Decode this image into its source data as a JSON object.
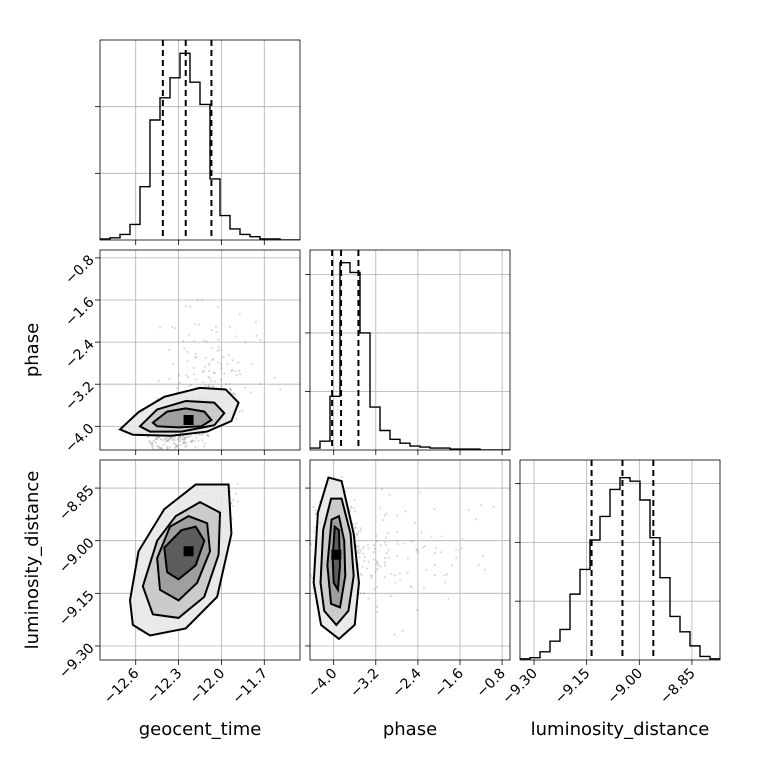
{
  "chart_data": {
    "type": "corner",
    "parameters": [
      "geocent_time",
      "phase",
      "luminosity_distance"
    ],
    "grid": true,
    "panels": [
      {
        "id": "hist-geocent_time",
        "type": "histogram",
        "parameter": "geocent_time",
        "xlim": [
          -12.85,
          -11.45
        ],
        "bins": [
          -12.85,
          -12.78,
          -12.71,
          -12.64,
          -12.57,
          -12.5,
          -12.43,
          -12.36,
          -12.29,
          -12.22,
          -12.15,
          -12.08,
          -12.01,
          -11.94,
          -11.87,
          -11.8,
          -11.73,
          -11.66,
          -11.59,
          -11.52,
          -11.45
        ],
        "counts": [
          1,
          2,
          5,
          14,
          48,
          108,
          128,
          146,
          168,
          142,
          122,
          55,
          22,
          10,
          5,
          3,
          1,
          1,
          0,
          0
        ],
        "ymax": 180,
        "quantiles": [
          -12.41,
          -12.25,
          -12.07
        ]
      },
      {
        "id": "scatter-geocent_time-phase",
        "type": "scatter",
        "x": "geocent_time",
        "y": "phase",
        "xlim": [
          -12.85,
          -11.45
        ],
        "ylim": [
          -4.45,
          -0.65
        ],
        "mean": [
          -12.23,
          -3.88
        ],
        "std": [
          0.12,
          0.3
        ],
        "corr": 0.62,
        "skew_up": true,
        "contours": [
          [
            [
              -12.48,
              -3.93
            ],
            [
              -12.38,
              -3.72
            ],
            [
              -12.25,
              -3.66
            ],
            [
              -12.12,
              -3.72
            ],
            [
              -12.07,
              -3.88
            ],
            [
              -12.14,
              -4.0
            ],
            [
              -12.3,
              -4.02
            ],
            [
              -12.45,
              -4.0
            ]
          ],
          [
            [
              -12.57,
              -4.0
            ],
            [
              -12.45,
              -3.68
            ],
            [
              -12.25,
              -3.52
            ],
            [
              -12.05,
              -3.55
            ],
            [
              -11.98,
              -3.75
            ],
            [
              -12.05,
              -3.98
            ],
            [
              -12.28,
              -4.1
            ],
            [
              -12.5,
              -4.1
            ]
          ],
          [
            [
              -12.71,
              -4.06
            ],
            [
              -12.58,
              -3.73
            ],
            [
              -12.4,
              -3.44
            ],
            [
              -12.15,
              -3.27
            ],
            [
              -11.97,
              -3.3
            ],
            [
              -11.88,
              -3.55
            ],
            [
              -11.93,
              -3.9
            ],
            [
              -12.1,
              -4.1
            ],
            [
              -12.35,
              -4.18
            ],
            [
              -12.62,
              -4.16
            ]
          ]
        ]
      },
      {
        "id": "hist-phase",
        "type": "histogram",
        "parameter": "phase",
        "xlim": [
          -4.45,
          -0.65
        ],
        "bins": [
          -4.45,
          -4.26,
          -4.07,
          -3.88,
          -3.69,
          -3.5,
          -3.31,
          -3.12,
          -2.93,
          -2.74,
          -2.55,
          -2.36,
          -2.17,
          -1.98,
          -1.79,
          -1.6,
          -1.41,
          -1.22,
          -1.03,
          -0.84,
          -0.65
        ],
        "counts": [
          2,
          9,
          55,
          192,
          182,
          120,
          44,
          20,
          11,
          7,
          4,
          3,
          2,
          2,
          1,
          1,
          1,
          0,
          0,
          0
        ],
        "ymax": 205,
        "quantiles": [
          -4.03,
          -3.86,
          -3.53
        ]
      },
      {
        "id": "scatter-geocent_time-luminosity_distance",
        "type": "scatter",
        "x": "geocent_time",
        "y": "luminosity_distance",
        "xlim": [
          -12.85,
          -11.45
        ],
        "ylim": [
          -9.34,
          -8.77
        ],
        "mean": [
          -12.23,
          -9.03
        ],
        "std": [
          0.12,
          0.065
        ],
        "corr": 0.78,
        "contours": [
          [
            [
              -12.4,
              -9.02
            ],
            [
              -12.28,
              -8.97
            ],
            [
              -12.18,
              -8.96
            ],
            [
              -12.12,
              -9.0
            ],
            [
              -12.18,
              -9.07
            ],
            [
              -12.3,
              -9.11
            ],
            [
              -12.38,
              -9.09
            ]
          ],
          [
            [
              -12.45,
              -9.05
            ],
            [
              -12.36,
              -8.96
            ],
            [
              -12.23,
              -8.93
            ],
            [
              -12.1,
              -8.95
            ],
            [
              -12.08,
              -9.03
            ],
            [
              -12.17,
              -9.12
            ],
            [
              -12.3,
              -9.17
            ],
            [
              -12.43,
              -9.14
            ]
          ],
          [
            [
              -12.55,
              -9.13
            ],
            [
              -12.45,
              -9.0
            ],
            [
              -12.32,
              -8.93
            ],
            [
              -12.15,
              -8.89
            ],
            [
              -12.01,
              -8.92
            ],
            [
              -12.02,
              -9.04
            ],
            [
              -12.12,
              -9.16
            ],
            [
              -12.3,
              -9.22
            ],
            [
              -12.48,
              -9.21
            ]
          ],
          [
            [
              -12.64,
              -9.17
            ],
            [
              -12.58,
              -9.03
            ],
            [
              -12.4,
              -8.91
            ],
            [
              -12.18,
              -8.84
            ],
            [
              -11.95,
              -8.84
            ],
            [
              -11.93,
              -8.98
            ],
            [
              -12.03,
              -9.16
            ],
            [
              -12.25,
              -9.25
            ],
            [
              -12.5,
              -9.27
            ],
            [
              -12.62,
              -9.24
            ]
          ]
        ]
      },
      {
        "id": "scatter-phase-luminosity_distance",
        "type": "scatter",
        "x": "phase",
        "y": "luminosity_distance",
        "xlim": [
          -4.45,
          -0.65
        ],
        "ylim": [
          -9.34,
          -8.77
        ],
        "mean": [
          -3.95,
          -9.04
        ],
        "std": [
          0.18,
          0.07
        ],
        "corr": -0.1,
        "skew_right": true,
        "contours": [
          [
            [
              -4.02,
              -9.05
            ],
            [
              -3.98,
              -8.96
            ],
            [
              -3.9,
              -8.97
            ],
            [
              -3.88,
              -9.07
            ],
            [
              -3.92,
              -9.14
            ],
            [
              -4.0,
              -9.12
            ]
          ],
          [
            [
              -4.12,
              -9.07
            ],
            [
              -4.04,
              -8.94
            ],
            [
              -3.9,
              -8.93
            ],
            [
              -3.8,
              -9.0
            ],
            [
              -3.78,
              -9.1
            ],
            [
              -3.88,
              -9.19
            ],
            [
              -4.05,
              -9.18
            ]
          ],
          [
            [
              -4.25,
              -9.12
            ],
            [
              -4.2,
              -8.97
            ],
            [
              -4.05,
              -8.88
            ],
            [
              -3.85,
              -8.88
            ],
            [
              -3.68,
              -8.98
            ],
            [
              -3.62,
              -9.1
            ],
            [
              -3.72,
              -9.2
            ],
            [
              -3.95,
              -9.24
            ],
            [
              -4.18,
              -9.2
            ]
          ],
          [
            [
              -4.38,
              -9.12
            ],
            [
              -4.3,
              -8.92
            ],
            [
              -4.1,
              -8.82
            ],
            [
              -3.85,
              -8.83
            ],
            [
              -3.62,
              -8.98
            ],
            [
              -3.52,
              -9.12
            ],
            [
              -3.6,
              -9.24
            ],
            [
              -3.9,
              -9.28
            ],
            [
              -4.24,
              -9.24
            ]
          ]
        ]
      },
      {
        "id": "hist-luminosity_distance",
        "type": "histogram",
        "parameter": "luminosity_distance",
        "xlim": [
          -9.34,
          -8.77
        ],
        "bins": [
          -9.34,
          -9.3115,
          -9.283,
          -9.2545,
          -9.226,
          -9.1975,
          -9.169,
          -9.1405,
          -9.112,
          -9.0835,
          -9.055,
          -9.0265,
          -8.998,
          -8.9695,
          -8.941,
          -8.9125,
          -8.884,
          -8.8555,
          -8.827,
          -8.7985,
          -8.77
        ],
        "counts": [
          1,
          2,
          7,
          16,
          26,
          56,
          77,
          102,
          122,
          145,
          155,
          152,
          136,
          104,
          70,
          37,
          24,
          12,
          3,
          1
        ],
        "ymax": 170,
        "quantiles": [
          -9.136,
          -9.048,
          -8.96
        ]
      }
    ],
    "x_ticks": {
      "geocent_time": [
        "-12.6",
        "-12.3",
        "-12.0",
        "-11.7"
      ],
      "phase": [
        "-4.0",
        "-3.2",
        "-2.4",
        "-1.6",
        "-0.8"
      ],
      "luminosity_distance": [
        "-9.30",
        "-9.15",
        "-9.00",
        "-8.85"
      ]
    },
    "y_ticks": {
      "phase": [
        "-0.8",
        "-1.6",
        "-2.4",
        "-3.2",
        "-4.0"
      ],
      "luminosity_distance": [
        "-8.85",
        "-9.00",
        "-9.15",
        "-9.30"
      ]
    },
    "xlabels": [
      "geocent_time",
      "phase",
      "luminosity_distance"
    ],
    "ylabels": [
      "phase",
      "luminosity_distance"
    ]
  }
}
